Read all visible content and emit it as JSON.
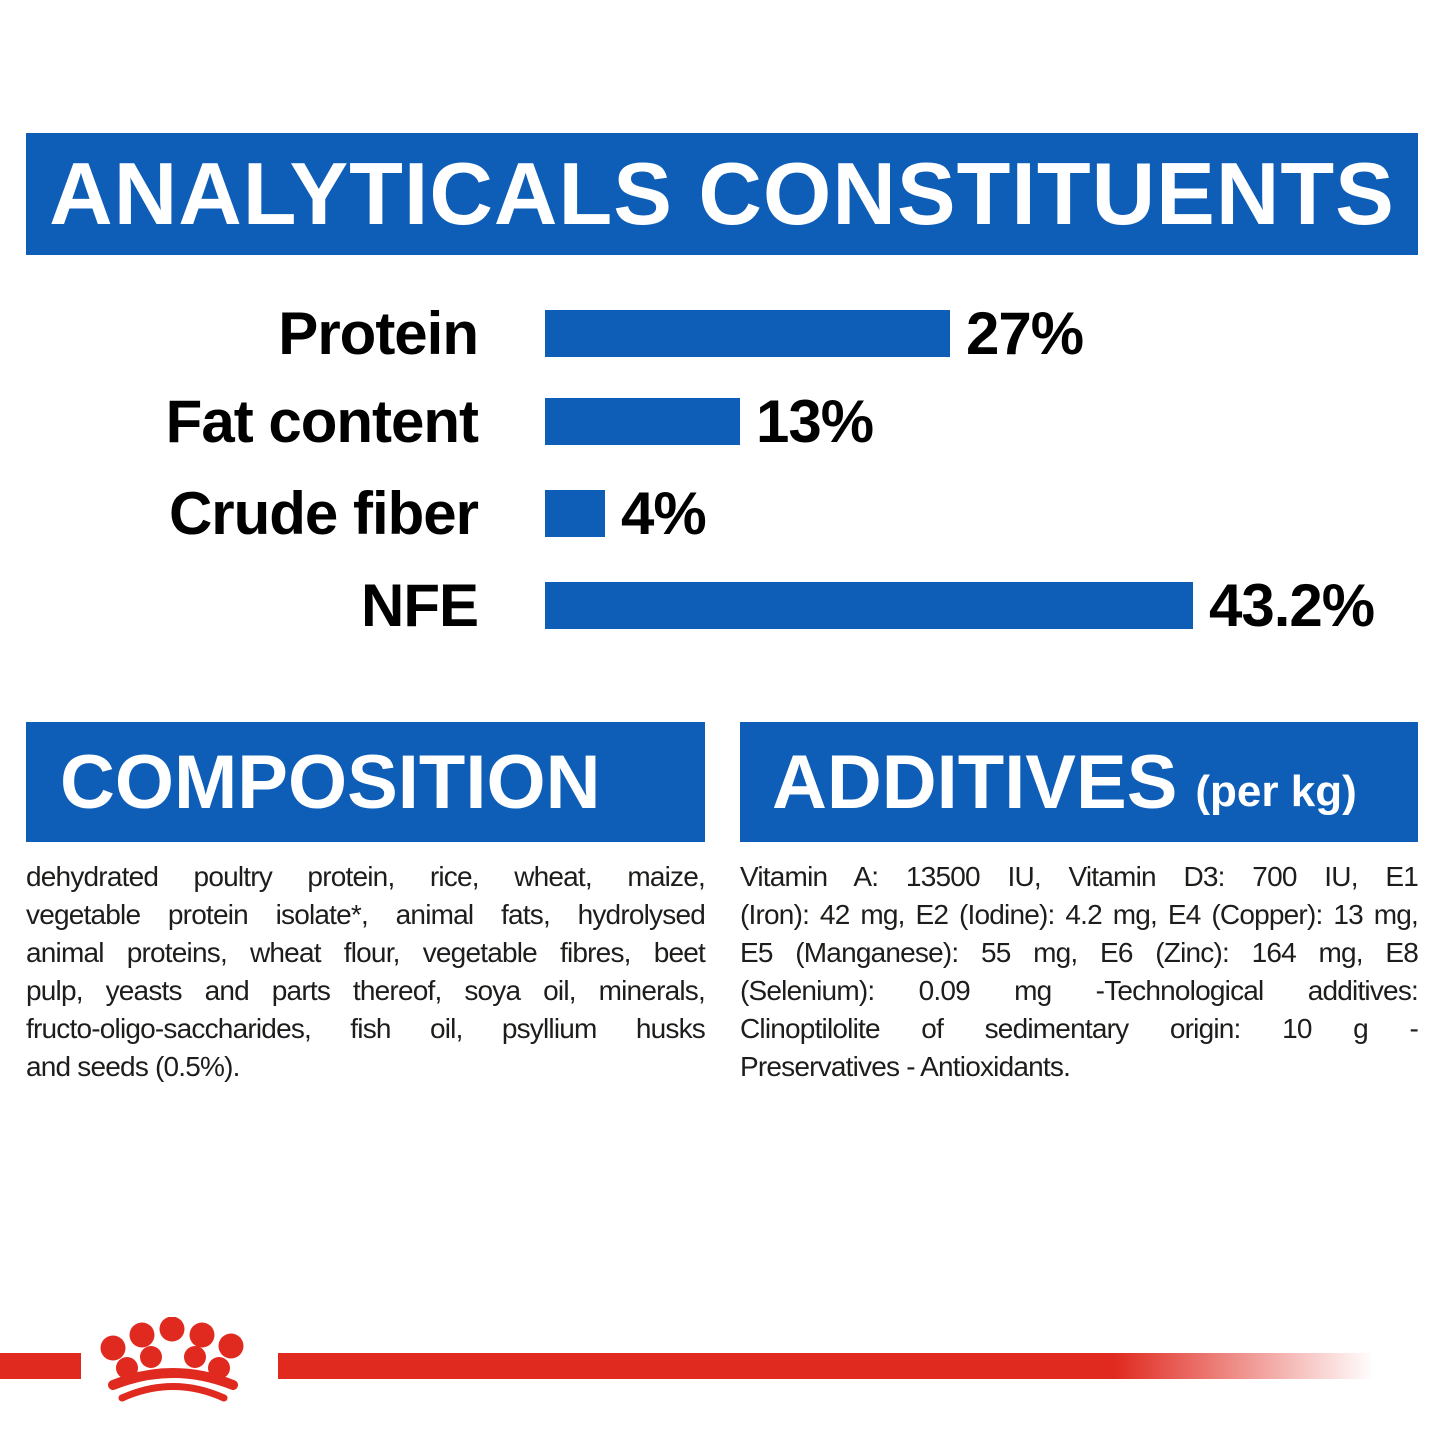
{
  "colors": {
    "brand_blue": "#0e5eb8",
    "brand_red": "#e02a20",
    "text_ink": "#1d1d1b",
    "chart_text": "#000000",
    "band_text": "#ffffff"
  },
  "header": {
    "title": "ANALYTICALS CONSTITUENTS"
  },
  "chart_data": {
    "type": "bar",
    "orientation": "horizontal",
    "title": "ANALYTICALS CONSTITUENTS",
    "categories": [
      "Protein",
      "Fat content",
      "Crude fiber",
      "NFE"
    ],
    "values": [
      27,
      13,
      4,
      43.2
    ],
    "value_labels": [
      "27%",
      "13%",
      "4%",
      "43.2%"
    ],
    "unit": "%",
    "xlim": [
      0,
      45
    ],
    "bar_color": "#0e5eb8",
    "grid": false,
    "legend": false,
    "value_label_position": "right-of-bar"
  },
  "composition": {
    "title": "COMPOSITION",
    "lines": [
      "dehydrated poultry protein, rice, wheat, maize,",
      "vegetable protein isolate*, animal fats, hydrolysed",
      "animal proteins, wheat flour, vegetable fibres, beet",
      "pulp, yeasts and parts thereof, soya oil, minerals,",
      "fructo-oligo-saccharides, fish oil, psyllium husks",
      "and seeds (0.5%)."
    ]
  },
  "additives": {
    "title": "ADDITIVES",
    "title_suffix": "(per kg)",
    "lines": [
      "Vitamin A: 13500 IU, Vitamin D3: 700 IU, E1",
      "(Iron): 42 mg, E2 (Iodine): 4.2 mg, E4 (Copper): 13 mg,",
      "E5 (Manganese): 55 mg, E6 (Zinc): 164 mg, E8",
      "(Selenium): 0.09 mg -Technological additives:",
      "Clinoptilolite of sedimentary origin: 10 g -",
      "Preservatives - Antioxidants."
    ]
  },
  "footer": {
    "logo": "royal-canin-crown"
  }
}
